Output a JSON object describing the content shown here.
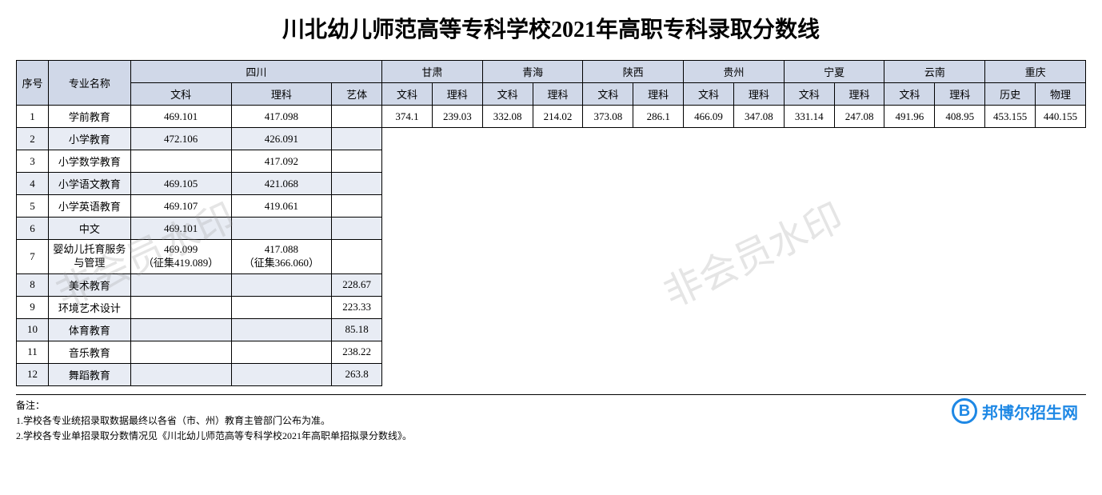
{
  "title": "川北幼儿师范高等专科学校2021年高职专科录取分数线",
  "colors": {
    "header_bg": "#d0d8e8",
    "row_even_bg": "#e8ecf4",
    "row_odd_bg": "#ffffff",
    "border": "#000000",
    "title_color": "#000000",
    "watermark_color": "rgba(150,150,150,0.25)",
    "logo_color": "#1e88e5"
  },
  "typography": {
    "title_fontsize": 28,
    "table_fontsize": 13,
    "notes_fontsize": 12,
    "font_family": "SimSun"
  },
  "headers": {
    "seq": "序号",
    "major": "专业名称",
    "provinces": {
      "sichuan": "四川",
      "gansu": "甘肃",
      "qinghai": "青海",
      "shaanxi": "陕西",
      "guizhou": "贵州",
      "ningxia": "宁夏",
      "yunnan": "云南",
      "chongqing": "重庆"
    },
    "sub": {
      "wenke": "文科",
      "like": "理科",
      "yiti": "艺体",
      "lishi": "历史",
      "wuli": "物理"
    }
  },
  "rows": [
    {
      "seq": "1",
      "major": "学前教育",
      "sc_wen": "469.101",
      "sc_li": "417.098",
      "sc_yi": "",
      "gs_wen": "374.1",
      "gs_li": "239.03",
      "qh_wen": "332.08",
      "qh_li": "214.02",
      "sx_wen": "373.08",
      "sx_li": "286.1",
      "gz_wen": "466.09",
      "gz_li": "347.08",
      "nx_wen": "331.14",
      "nx_li": "247.08",
      "yn_wen": "491.96",
      "yn_li": "408.95",
      "cq_ls": "453.155",
      "cq_wl": "440.155"
    },
    {
      "seq": "2",
      "major": "小学教育",
      "sc_wen": "472.106",
      "sc_li": "426.091",
      "sc_yi": ""
    },
    {
      "seq": "3",
      "major": "小学数学教育",
      "sc_wen": "",
      "sc_li": "417.092",
      "sc_yi": ""
    },
    {
      "seq": "4",
      "major": "小学语文教育",
      "sc_wen": "469.105",
      "sc_li": "421.068",
      "sc_yi": ""
    },
    {
      "seq": "5",
      "major": "小学英语教育",
      "sc_wen": "469.107",
      "sc_li": "419.061",
      "sc_yi": ""
    },
    {
      "seq": "6",
      "major": "中文",
      "sc_wen": "469.101",
      "sc_li": "",
      "sc_yi": ""
    },
    {
      "seq": "7",
      "major": "婴幼儿托育服务与管理",
      "sc_wen": "469.099\n（征集419.089）",
      "sc_li": "417.088\n（征集366.060）",
      "sc_yi": ""
    },
    {
      "seq": "8",
      "major": "美术教育",
      "sc_wen": "",
      "sc_li": "",
      "sc_yi": "228.67"
    },
    {
      "seq": "9",
      "major": "环境艺术设计",
      "sc_wen": "",
      "sc_li": "",
      "sc_yi": "223.33"
    },
    {
      "seq": "10",
      "major": "体育教育",
      "sc_wen": "",
      "sc_li": "",
      "sc_yi": "85.18"
    },
    {
      "seq": "11",
      "major": "音乐教育",
      "sc_wen": "",
      "sc_li": "",
      "sc_yi": "238.22"
    },
    {
      "seq": "12",
      "major": "舞蹈教育",
      "sc_wen": "",
      "sc_li": "",
      "sc_yi": "263.8"
    }
  ],
  "notes": {
    "label": "备注：",
    "line1": "1.学校各专业统招录取数据最终以各省（市、州）教育主管部门公布为准。",
    "line2": "2.学校各专业单招录取分数情况见《川北幼儿师范高等专科学校2021年高职单招拟录分数线》。"
  },
  "watermark": "非会员水印",
  "logo": {
    "letter": "B",
    "text": "邦博尔招生网"
  }
}
